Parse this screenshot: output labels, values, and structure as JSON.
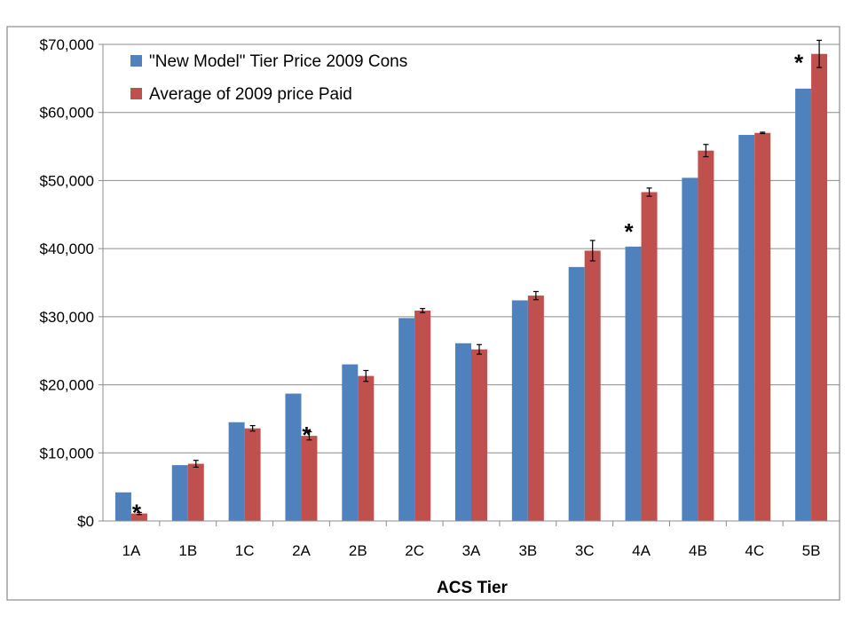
{
  "chart_data": {
    "type": "bar",
    "xlabel": "ACS Tier",
    "ylabel": "",
    "title": "",
    "ylim": [
      0,
      70000
    ],
    "yticks": [
      0,
      10000,
      20000,
      30000,
      40000,
      50000,
      60000,
      70000
    ],
    "ytick_labels": [
      "$0",
      "$10,000",
      "$20,000",
      "$30,000",
      "$40,000",
      "$50,000",
      "$60,000",
      "$70,000"
    ],
    "grid": true,
    "legend_position": "top-left",
    "categories": [
      "1A",
      "1B",
      "1C",
      "2A",
      "2B",
      "2C",
      "3A",
      "3B",
      "3C",
      "4A",
      "4B",
      "4C",
      "5B"
    ],
    "series": [
      {
        "name": "\"New Model\" Tier Price 2009 Cons",
        "color": "#4f81bd",
        "values": [
          4200,
          8200,
          14500,
          18700,
          23000,
          29800,
          26100,
          32400,
          37300,
          40300,
          50400,
          56700,
          63500
        ]
      },
      {
        "name": "Average of 2009 price Paid",
        "color": "#c0504d",
        "values": [
          1100,
          8400,
          13600,
          12500,
          21300,
          30900,
          25200,
          33100,
          39700,
          48300,
          54400,
          57000,
          68600
        ],
        "error": [
          150,
          500,
          400,
          600,
          800,
          300,
          700,
          600,
          1500,
          600,
          900,
          100,
          2000
        ]
      }
    ],
    "annotations": [
      {
        "category": "1A",
        "text": "*"
      },
      {
        "category": "2A",
        "text": "*"
      },
      {
        "category": "4A",
        "text": "*"
      },
      {
        "category": "5B",
        "text": "*"
      }
    ]
  }
}
